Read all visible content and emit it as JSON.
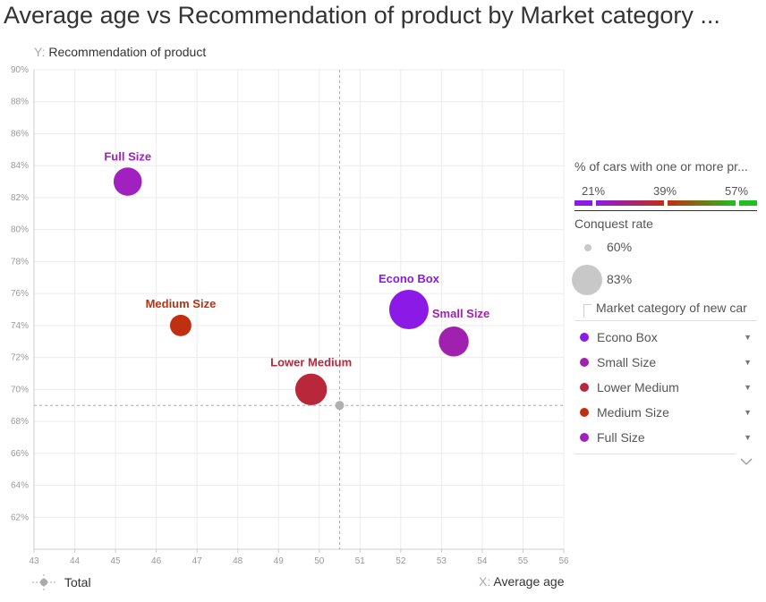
{
  "title": "Average age vs Recommendation of product by Market category ...",
  "y_axis": {
    "prefix": "Y:",
    "label": "Recommendation of product"
  },
  "x_axis": {
    "prefix": "X:",
    "label": "Average age"
  },
  "total_legend": {
    "label": "Total"
  },
  "legend": {
    "color_title": "% of cars with one or more pr...",
    "color_stops": [
      "21%",
      "39%",
      "57%"
    ],
    "size_title": "Conquest rate",
    "size_items": [
      "60%",
      "83%"
    ],
    "category_title": "Market category of new car",
    "categories": [
      {
        "label": "Econo Box",
        "color": "#8b1ae6"
      },
      {
        "label": "Small Size",
        "color": "#a020b0"
      },
      {
        "label": "Lower Medium",
        "color": "#b8283a"
      },
      {
        "label": "Medium Size",
        "color": "#c03010"
      },
      {
        "label": "Full Size",
        "color": "#a020c0"
      }
    ]
  },
  "chart_data": {
    "type": "scatter",
    "title": "Average age vs Recommendation of product by Market category ...",
    "xlabel": "Average age",
    "ylabel": "Recommendation of product",
    "xlim": [
      43,
      56
    ],
    "ylim": [
      60,
      90
    ],
    "x_ticks": [
      "43",
      "44",
      "45",
      "46",
      "47",
      "48",
      "49",
      "50",
      "51",
      "52",
      "53",
      "54",
      "55",
      "56"
    ],
    "y_ticks": [
      "62%",
      "64%",
      "66%",
      "68%",
      "70%",
      "72%",
      "74%",
      "76%",
      "78%",
      "80%",
      "82%",
      "84%",
      "86%",
      "88%",
      "90%"
    ],
    "grid": true,
    "total": {
      "x": 50.5,
      "y": 69
    },
    "points": [
      {
        "label": "Full Size",
        "x": 45.3,
        "y": 83,
        "color": "#a020c0",
        "size_value": 70
      },
      {
        "label": "Medium Size",
        "x": 46.6,
        "y": 74,
        "color": "#c03010",
        "size_value": 62
      },
      {
        "label": "Lower Medium",
        "x": 49.8,
        "y": 70,
        "color": "#b8283a",
        "size_value": 74
      },
      {
        "label": "Econo Box",
        "x": 52.2,
        "y": 75,
        "color": "#8b1ae6",
        "size_value": 83
      },
      {
        "label": "Small Size",
        "x": 53.3,
        "y": 73,
        "color": "#a020b0",
        "size_value": 72
      }
    ]
  }
}
